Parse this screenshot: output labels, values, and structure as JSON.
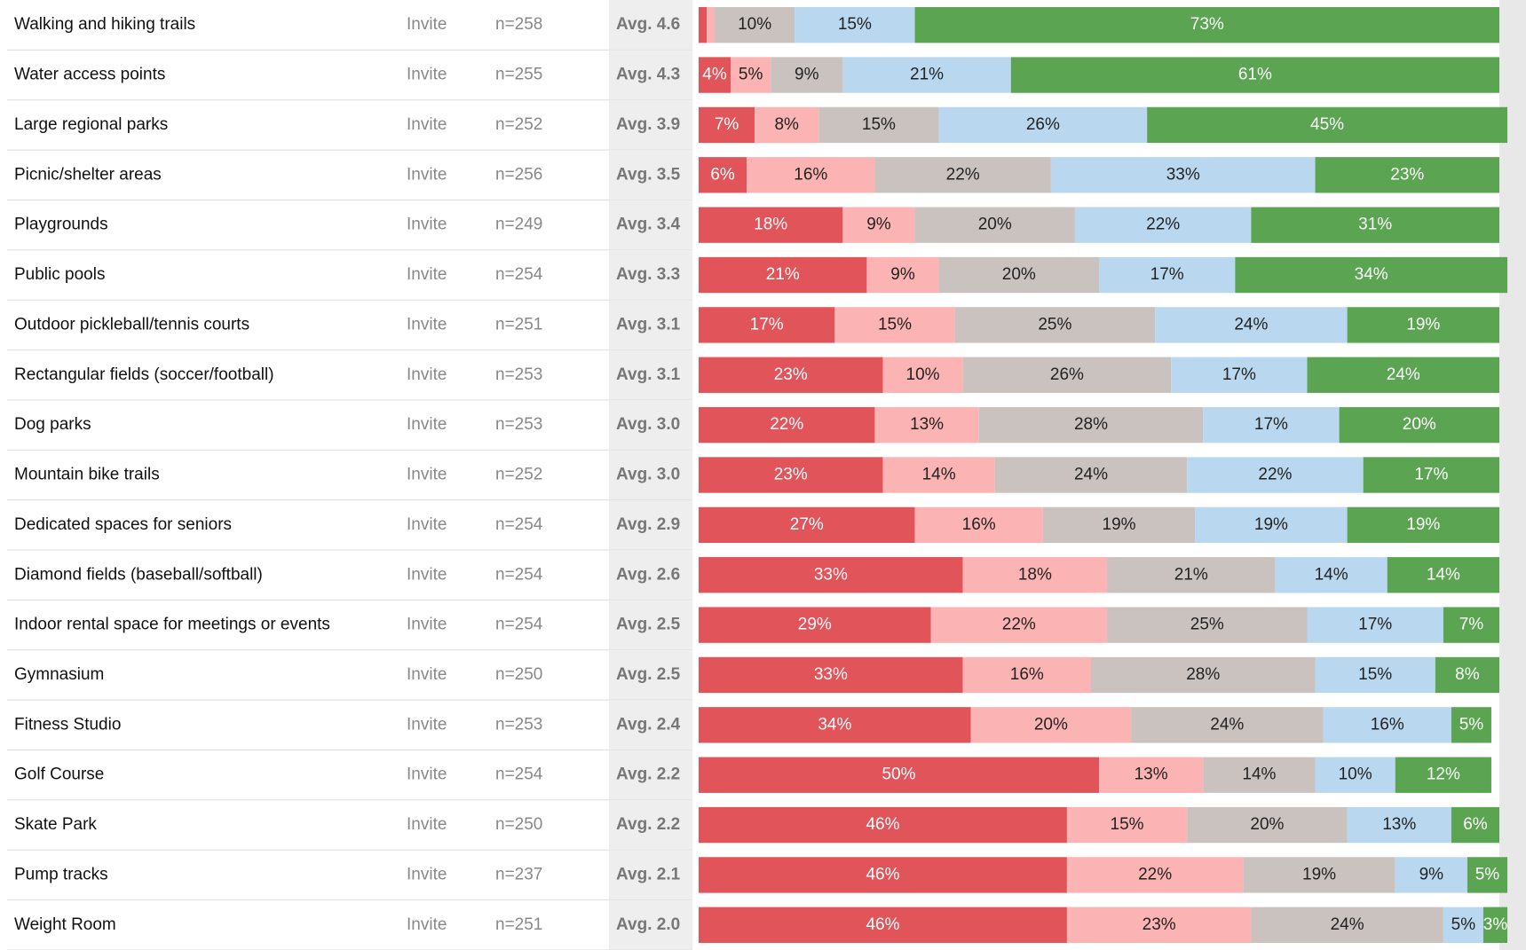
{
  "chart_data": {
    "type": "bar",
    "orientation": "horizontal",
    "stacked": true,
    "categories": [
      "Walking and hiking trails",
      "Water access points",
      "Large regional parks",
      "Picnic/shelter areas",
      "Playgrounds",
      "Public pools",
      "Outdoor pickleball/tennis courts",
      "Rectangular fields (soccer/football)",
      "Dog parks",
      "Mountain bike trails",
      "Dedicated spaces for seniors",
      "Diamond fields (baseball/softball)",
      "Indoor rental space for meetings or events",
      "Gymnasium",
      "Fitness Studio",
      "Golf Course",
      "Skate Park",
      "Pump tracks",
      "Weight Room"
    ],
    "invite": [
      "Invite",
      "Invite",
      "Invite",
      "Invite",
      "Invite",
      "Invite",
      "Invite",
      "Invite",
      "Invite",
      "Invite",
      "Invite",
      "Invite",
      "Invite",
      "Invite",
      "Invite",
      "Invite",
      "Invite",
      "Invite",
      "Invite"
    ],
    "n_labels": [
      "n=258",
      "n=255",
      "n=252",
      "n=256",
      "n=249",
      "n=254",
      "n=251",
      "n=253",
      "n=253",
      "n=252",
      "n=254",
      "n=254",
      "n=254",
      "n=250",
      "n=253",
      "n=254",
      "n=250",
      "n=237",
      "n=251"
    ],
    "avg_labels": [
      "Avg. 4.6",
      "Avg. 4.3",
      "Avg. 3.9",
      "Avg. 3.5",
      "Avg. 3.4",
      "Avg. 3.3",
      "Avg. 3.1",
      "Avg. 3.1",
      "Avg. 3.0",
      "Avg. 3.0",
      "Avg. 2.9",
      "Avg. 2.6",
      "Avg. 2.5",
      "Avg. 2.5",
      "Avg. 2.4",
      "Avg. 2.2",
      "Avg. 2.2",
      "Avg. 2.1",
      "Avg. 2.0"
    ],
    "xlim": [
      0,
      100
    ],
    "series": [
      {
        "color": "#e0545a",
        "text_color": "#ffffff",
        "values": [
          1,
          4,
          7,
          6,
          18,
          21,
          17,
          23,
          22,
          23,
          27,
          33,
          29,
          33,
          34,
          50,
          46,
          46,
          46
        ],
        "value_labels": [
          null,
          "4%",
          "7%",
          "6%",
          "18%",
          "21%",
          "17%",
          "23%",
          "22%",
          "23%",
          "27%",
          "33%",
          "29%",
          "33%",
          "34%",
          "50%",
          "46%",
          "46%",
          "46%"
        ]
      },
      {
        "color": "#fcb3b3",
        "text_color": "#222222",
        "values": [
          1,
          5,
          8,
          16,
          9,
          9,
          15,
          10,
          13,
          14,
          16,
          18,
          22,
          16,
          20,
          13,
          15,
          22,
          23
        ],
        "value_labels": [
          null,
          "5%",
          "8%",
          "16%",
          "9%",
          "9%",
          "15%",
          "10%",
          "13%",
          "14%",
          "16%",
          "18%",
          "22%",
          "16%",
          "20%",
          "13%",
          "15%",
          "22%",
          "23%"
        ]
      },
      {
        "color": "#cac2bf",
        "text_color": "#222222",
        "values": [
          10,
          9,
          15,
          22,
          20,
          20,
          25,
          26,
          28,
          24,
          19,
          21,
          25,
          28,
          24,
          14,
          20,
          19,
          24
        ],
        "value_labels": [
          "10%",
          "9%",
          "15%",
          "22%",
          "20%",
          "20%",
          "25%",
          "26%",
          "28%",
          "24%",
          "19%",
          "21%",
          "25%",
          "28%",
          "24%",
          "14%",
          "20%",
          "19%",
          "24%"
        ]
      },
      {
        "color": "#b9d8ef",
        "text_color": "#222222",
        "values": [
          15,
          21,
          26,
          33,
          22,
          17,
          24,
          17,
          17,
          22,
          19,
          14,
          17,
          15,
          16,
          10,
          13,
          9,
          5
        ],
        "value_labels": [
          "15%",
          "21%",
          "26%",
          "33%",
          "22%",
          "17%",
          "24%",
          "17%",
          "17%",
          "22%",
          "19%",
          "14%",
          "17%",
          "15%",
          "16%",
          "10%",
          "13%",
          "9%",
          "5%"
        ]
      },
      {
        "color": "#5ba552",
        "text_color": "#ffffff",
        "values": [
          73,
          61,
          45,
          23,
          31,
          34,
          19,
          24,
          20,
          17,
          19,
          14,
          7,
          8,
          5,
          12,
          6,
          5,
          3
        ],
        "value_labels": [
          "73%",
          "61%",
          "45%",
          "23%",
          "31%",
          "34%",
          "19%",
          "24%",
          "20%",
          "17%",
          "19%",
          "14%",
          "7%",
          "8%",
          "5%",
          "12%",
          "6%",
          "5%",
          "3%"
        ]
      }
    ]
  }
}
